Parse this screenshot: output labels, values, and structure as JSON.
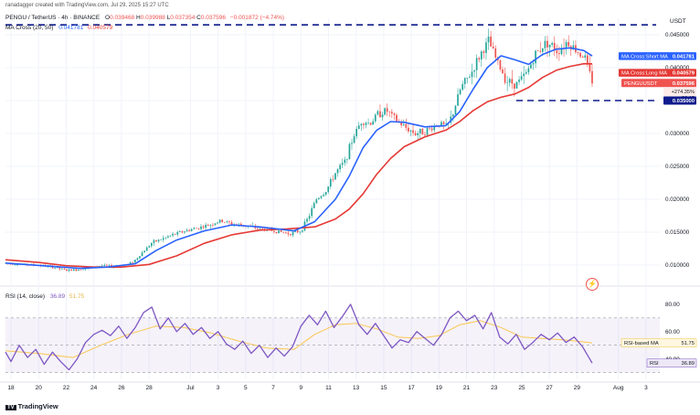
{
  "header": {
    "credit": "ranadagger created with TradingView.com, Jul 29, 2025 15:27 UTC",
    "symbol": "PENGU / TetherUS · 4h · BINANCE",
    "ohlc": [
      {
        "k": "O",
        "v": "0.039468"
      },
      {
        "k": "H",
        "v": "0.039988"
      },
      {
        "k": "L",
        "v": "0.037354"
      },
      {
        "k": "C",
        "v": "0.037596"
      }
    ],
    "change": "−0.001872 (−4.74%)",
    "ma_label": "MA Cross (20, 50)",
    "ma_short_value": "0.041781",
    "ma_long_value": "0.040579",
    "rsi_label": "RSI (14, close)",
    "rsi_value": "36.89",
    "rsi_ma_value": "51.75"
  },
  "currency": "USDT",
  "tv_logo": "TradingView",
  "colors": {
    "up": "#26a69a",
    "down": "#ef5350",
    "short_ma": "#2962ff",
    "long_ma": "#e53935",
    "rsi": "#7e57c2",
    "rsi_ma": "#f9c74f",
    "support": "#0d1b8c",
    "axis_text": "#131722"
  },
  "price_labels": {
    "short_ma": "MA Cross:Short MA",
    "short_ma_value": "0.041781",
    "long_ma": "MA Cross:Long MA",
    "long_ma_value": "0.040579",
    "symbol": "PENGUUSDT",
    "symbol_price": "0.037596",
    "symbol_change": "+274.35%",
    "countdown": "32:15",
    "support": "0.035000"
  },
  "rsi_labels": {
    "rsi_ma_name": "RSI-based MA",
    "rsi_ma_value": "51.75",
    "rsi_name": "RSI",
    "rsi_value": "36.89"
  },
  "chart_data": {
    "type": "candlestick",
    "price_axis": {
      "ticks": [
        0.045,
        0.04,
        0.035,
        0.03,
        0.025,
        0.02,
        0.015,
        0.01
      ],
      "tick_labels": [
        "0.045000",
        "0.040000",
        "0.035000",
        "0.030000",
        "0.025000",
        "0.020000",
        "0.015000",
        "0.010000"
      ],
      "range": [
        0.0075,
        0.0475
      ]
    },
    "rsi_axis": {
      "ticks": [
        80,
        60,
        40
      ],
      "tick_labels": [
        "80.00",
        "60.00",
        "40.00"
      ],
      "range": [
        25,
        90
      ],
      "band": [
        30,
        70
      ]
    },
    "time_axis": {
      "labels": [
        "18",
        "20",
        "22",
        "24",
        "26",
        "28",
        "Jul",
        "3",
        "5",
        "7",
        "9",
        "11",
        "13",
        "15",
        "17",
        "19",
        "21",
        "23",
        "25",
        "27",
        "29",
        "Aug",
        "3"
      ],
      "range": [
        17.6,
        36.3
      ]
    },
    "resistance_level": 0.0465,
    "support_level": 0.035,
    "trend_points": [
      [
        17.6,
        0.0103
      ],
      [
        19.0,
        0.0101
      ],
      [
        20.0,
        0.01
      ],
      [
        21.0,
        0.0097
      ],
      [
        22.0,
        0.0092
      ],
      [
        22.8,
        0.0093
      ],
      [
        23.5,
        0.0096
      ],
      [
        24.5,
        0.0099
      ],
      [
        25.5,
        0.0098
      ],
      [
        26.5,
        0.0101
      ],
      [
        27.0,
        0.0108
      ],
      [
        27.6,
        0.0121
      ],
      [
        28.2,
        0.0134
      ],
      [
        29.0,
        0.014
      ],
      [
        29.6,
        0.0145
      ],
      [
        30.3,
        0.015
      ],
      [
        31.2,
        0.0155
      ],
      [
        32.2,
        0.016
      ],
      [
        33.2,
        0.0167
      ],
      [
        34.0,
        0.0163
      ],
      [
        35.0,
        0.016
      ],
      [
        36.0,
        0.0155
      ],
      [
        37.0,
        0.0152
      ],
      [
        38.2,
        0.0148
      ],
      [
        39.0,
        0.0152
      ],
      [
        39.6,
        0.0175
      ],
      [
        40.1,
        0.02
      ],
      [
        40.8,
        0.0212
      ],
      [
        41.5,
        0.024
      ],
      [
        42.2,
        0.0258
      ],
      [
        42.8,
        0.0295
      ],
      [
        43.4,
        0.032
      ],
      [
        44.0,
        0.0315
      ],
      [
        44.6,
        0.033
      ],
      [
        45.2,
        0.0335
      ],
      [
        45.8,
        0.0322
      ],
      [
        46.5,
        0.031
      ],
      [
        47.3,
        0.03
      ],
      [
        48.2,
        0.0305
      ],
      [
        49.0,
        0.0315
      ],
      [
        49.6,
        0.031
      ],
      [
        50.0,
        0.033
      ],
      [
        50.6,
        0.037
      ],
      [
        51.3,
        0.039
      ],
      [
        52.0,
        0.042
      ],
      [
        52.6,
        0.044
      ],
      [
        53.2,
        0.041
      ],
      [
        53.9,
        0.038
      ],
      [
        54.6,
        0.0375
      ],
      [
        55.3,
        0.039
      ],
      [
        56.0,
        0.042
      ],
      [
        56.8,
        0.044
      ],
      [
        57.6,
        0.0425
      ],
      [
        58.3,
        0.044
      ],
      [
        59.0,
        0.0425
      ],
      [
        59.6,
        0.0415
      ],
      [
        60.1,
        0.0376
      ]
    ],
    "short_ma_points": [
      [
        17.6,
        0.0103
      ],
      [
        21.0,
        0.0098
      ],
      [
        23.0,
        0.0095
      ],
      [
        25.0,
        0.0097
      ],
      [
        27.0,
        0.0102
      ],
      [
        28.5,
        0.0122
      ],
      [
        30.0,
        0.0138
      ],
      [
        32.0,
        0.0152
      ],
      [
        34.0,
        0.0161
      ],
      [
        36.0,
        0.0158
      ],
      [
        38.5,
        0.0152
      ],
      [
        40.0,
        0.0166
      ],
      [
        41.5,
        0.02
      ],
      [
        42.5,
        0.0235
      ],
      [
        43.5,
        0.0278
      ],
      [
        44.5,
        0.0305
      ],
      [
        45.5,
        0.0318
      ],
      [
        46.5,
        0.0317
      ],
      [
        48.0,
        0.031
      ],
      [
        49.5,
        0.0312
      ],
      [
        50.5,
        0.0333
      ],
      [
        51.5,
        0.0368
      ],
      [
        52.5,
        0.04
      ],
      [
        53.5,
        0.0418
      ],
      [
        54.5,
        0.0412
      ],
      [
        55.5,
        0.0405
      ],
      [
        56.5,
        0.042
      ],
      [
        57.5,
        0.0428
      ],
      [
        58.5,
        0.043
      ],
      [
        59.5,
        0.0426
      ],
      [
        60.1,
        0.04178
      ]
    ],
    "long_ma_points": [
      [
        17.6,
        0.0108
      ],
      [
        20.0,
        0.0104
      ],
      [
        22.0,
        0.0099
      ],
      [
        24.0,
        0.0097
      ],
      [
        26.0,
        0.0097
      ],
      [
        28.0,
        0.0101
      ],
      [
        30.0,
        0.0114
      ],
      [
        32.0,
        0.0133
      ],
      [
        34.0,
        0.0146
      ],
      [
        36.0,
        0.0153
      ],
      [
        38.0,
        0.0155
      ],
      [
        40.0,
        0.0158
      ],
      [
        41.5,
        0.017
      ],
      [
        42.5,
        0.0185
      ],
      [
        43.5,
        0.0208
      ],
      [
        44.5,
        0.0238
      ],
      [
        45.5,
        0.0262
      ],
      [
        46.5,
        0.028
      ],
      [
        48.0,
        0.0295
      ],
      [
        49.5,
        0.0305
      ],
      [
        50.5,
        0.0318
      ],
      [
        51.5,
        0.0335
      ],
      [
        52.5,
        0.0348
      ],
      [
        53.5,
        0.0355
      ],
      [
        54.5,
        0.036
      ],
      [
        55.5,
        0.037
      ],
      [
        56.5,
        0.0385
      ],
      [
        57.5,
        0.0396
      ],
      [
        58.5,
        0.0402
      ],
      [
        59.5,
        0.0406
      ],
      [
        60.1,
        0.04058
      ]
    ],
    "rsi_points": [
      [
        17.6,
        45
      ],
      [
        18.0,
        38
      ],
      [
        18.6,
        50
      ],
      [
        19.2,
        41
      ],
      [
        19.8,
        47
      ],
      [
        20.4,
        36
      ],
      [
        21.0,
        45
      ],
      [
        21.6,
        38
      ],
      [
        22.2,
        32
      ],
      [
        22.8,
        40
      ],
      [
        23.4,
        52
      ],
      [
        24.0,
        58
      ],
      [
        24.6,
        61
      ],
      [
        25.2,
        57
      ],
      [
        25.8,
        64
      ],
      [
        26.4,
        55
      ],
      [
        27.0,
        63
      ],
      [
        27.6,
        74
      ],
      [
        28.2,
        78
      ],
      [
        28.8,
        62
      ],
      [
        29.4,
        70
      ],
      [
        30.0,
        60
      ],
      [
        30.6,
        66
      ],
      [
        31.2,
        58
      ],
      [
        31.8,
        63
      ],
      [
        32.4,
        55
      ],
      [
        33.0,
        60
      ],
      [
        33.6,
        51
      ],
      [
        34.2,
        47
      ],
      [
        34.8,
        53
      ],
      [
        35.4,
        44
      ],
      [
        36.0,
        50
      ],
      [
        36.6,
        41
      ],
      [
        37.2,
        48
      ],
      [
        37.8,
        42
      ],
      [
        38.4,
        49
      ],
      [
        39.0,
        64
      ],
      [
        39.6,
        72
      ],
      [
        40.2,
        65
      ],
      [
        40.8,
        75
      ],
      [
        41.4,
        63
      ],
      [
        42.0,
        71
      ],
      [
        42.6,
        80
      ],
      [
        43.2,
        65
      ],
      [
        43.8,
        58
      ],
      [
        44.4,
        66
      ],
      [
        45.0,
        57
      ],
      [
        45.6,
        48
      ],
      [
        46.2,
        54
      ],
      [
        46.8,
        52
      ],
      [
        47.4,
        60
      ],
      [
        48.0,
        55
      ],
      [
        48.6,
        50
      ],
      [
        49.2,
        58
      ],
      [
        49.8,
        70
      ],
      [
        50.4,
        75
      ],
      [
        51.0,
        68
      ],
      [
        51.6,
        72
      ],
      [
        52.2,
        62
      ],
      [
        52.8,
        74
      ],
      [
        53.4,
        56
      ],
      [
        54.0,
        51
      ],
      [
        54.6,
        58
      ],
      [
        55.2,
        47
      ],
      [
        55.8,
        52
      ],
      [
        56.4,
        58
      ],
      [
        57.0,
        54
      ],
      [
        57.6,
        59
      ],
      [
        58.2,
        52
      ],
      [
        58.8,
        56
      ],
      [
        59.4,
        49
      ],
      [
        60.1,
        36.9
      ]
    ],
    "rsi_ma_points": [
      [
        17.6,
        46
      ],
      [
        20.0,
        44
      ],
      [
        22.5,
        41
      ],
      [
        24.5,
        50
      ],
      [
        26.5,
        58
      ],
      [
        28.5,
        64
      ],
      [
        30.5,
        63
      ],
      [
        32.5,
        59
      ],
      [
        34.5,
        53
      ],
      [
        36.5,
        48
      ],
      [
        38.5,
        47
      ],
      [
        40.0,
        58
      ],
      [
        41.5,
        65
      ],
      [
        43.0,
        66
      ],
      [
        44.5,
        62
      ],
      [
        46.0,
        56
      ],
      [
        47.5,
        55
      ],
      [
        49.0,
        57
      ],
      [
        50.5,
        65
      ],
      [
        52.0,
        68
      ],
      [
        53.5,
        63
      ],
      [
        55.0,
        56
      ],
      [
        56.5,
        55
      ],
      [
        58.0,
        54
      ],
      [
        59.0,
        53
      ],
      [
        60.1,
        51.75
      ]
    ]
  }
}
